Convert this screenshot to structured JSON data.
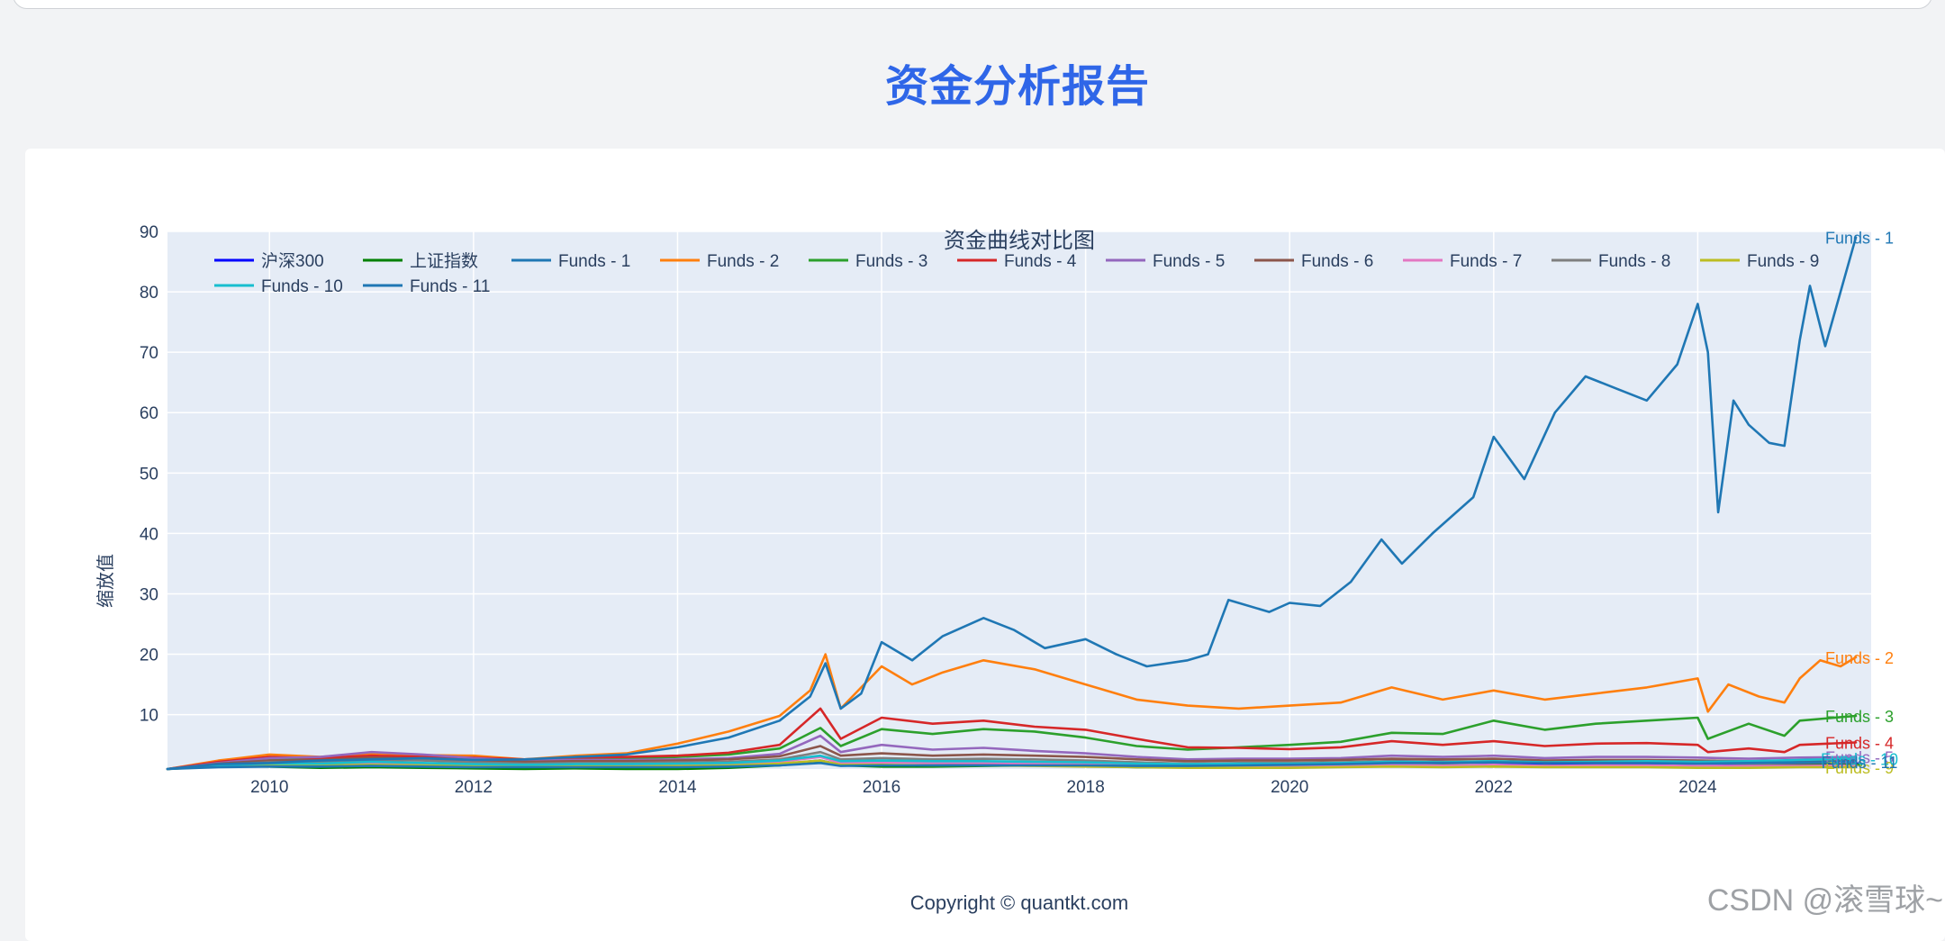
{
  "page": {
    "report_title": "资金分析报告",
    "footer": "Copyright © quantkt.com",
    "watermark": "CSDN @滚雪球~"
  },
  "chart_data": {
    "type": "line",
    "title": "资金曲线对比图",
    "xlabel": "",
    "ylabel": "缩放值",
    "xlim": [
      2009.0,
      2025.7
    ],
    "ylim": [
      1,
      90
    ],
    "x_ticks": [
      "2010",
      "2012",
      "2014",
      "2016",
      "2018",
      "2020",
      "2022",
      "2024"
    ],
    "y_ticks": [
      "10",
      "20",
      "30",
      "40",
      "50",
      "60",
      "70",
      "80",
      "90"
    ],
    "grid": true,
    "legend_position": "top",
    "series": [
      {
        "name": "沪深300",
        "color": "#0000ff",
        "end_label": false,
        "x": [
          2009.0,
          2009.5,
          2010.0,
          2010.5,
          2011.0,
          2011.5,
          2012.0,
          2012.5,
          2013.0,
          2013.5,
          2014.0,
          2014.5,
          2015.0,
          2015.4,
          2015.6,
          2016.0,
          2016.5,
          2017.0,
          2017.5,
          2018.0,
          2018.5,
          2019.0,
          2019.5,
          2020.0,
          2020.5,
          2021.0,
          2021.5,
          2022.0,
          2022.5,
          2023.0,
          2023.5,
          2024.0,
          2024.5,
          2025.0,
          2025.6
        ],
        "values": [
          1.0,
          1.6,
          1.5,
          1.3,
          1.4,
          1.3,
          1.2,
          1.1,
          1.2,
          1.1,
          1.1,
          1.3,
          1.8,
          2.4,
          1.7,
          1.5,
          1.6,
          1.7,
          1.9,
          1.8,
          1.5,
          1.4,
          1.7,
          1.8,
          2.0,
          2.3,
          2.2,
          2.0,
          1.9,
          1.8,
          1.7,
          1.5,
          1.6,
          1.8,
          1.9
        ]
      },
      {
        "name": "上证指数",
        "color": "#008000",
        "end_label": false,
        "x": [
          2009.0,
          2009.5,
          2010.0,
          2010.5,
          2011.0,
          2011.5,
          2012.0,
          2012.5,
          2013.0,
          2013.5,
          2014.0,
          2014.5,
          2015.0,
          2015.4,
          2015.6,
          2016.0,
          2016.5,
          2017.0,
          2017.5,
          2018.0,
          2018.5,
          2019.0,
          2019.5,
          2020.0,
          2020.5,
          2021.0,
          2021.5,
          2022.0,
          2022.5,
          2023.0,
          2023.5,
          2024.0,
          2024.5,
          2025.0,
          2025.6
        ],
        "values": [
          1.0,
          1.5,
          1.4,
          1.2,
          1.3,
          1.2,
          1.1,
          1.0,
          1.1,
          1.0,
          1.0,
          1.2,
          1.6,
          2.2,
          1.6,
          1.4,
          1.4,
          1.5,
          1.6,
          1.5,
          1.3,
          1.3,
          1.4,
          1.4,
          1.5,
          1.7,
          1.7,
          1.6,
          1.5,
          1.5,
          1.5,
          1.4,
          1.5,
          1.6,
          1.7
        ]
      },
      {
        "name": "Funds - 1",
        "color": "#1f77b4",
        "end_label": true,
        "x": [
          2009.0,
          2009.5,
          2010.0,
          2010.5,
          2011.0,
          2011.5,
          2012.0,
          2012.5,
          2013.0,
          2013.5,
          2014.0,
          2014.5,
          2015.0,
          2015.3,
          2015.45,
          2015.6,
          2015.8,
          2016.0,
          2016.3,
          2016.6,
          2017.0,
          2017.3,
          2017.6,
          2018.0,
          2018.3,
          2018.6,
          2019.0,
          2019.2,
          2019.4,
          2019.8,
          2020.0,
          2020.3,
          2020.6,
          2020.9,
          2021.1,
          2021.4,
          2021.8,
          2022.0,
          2022.3,
          2022.6,
          2022.9,
          2023.2,
          2023.5,
          2023.8,
          2024.0,
          2024.1,
          2024.2,
          2024.35,
          2024.5,
          2024.7,
          2024.85,
          2025.0,
          2025.1,
          2025.25,
          2025.4,
          2025.55
        ],
        "values": [
          1.0,
          1.8,
          2.0,
          2.4,
          2.6,
          2.8,
          2.5,
          2.6,
          3.0,
          3.4,
          4.6,
          6.2,
          9.0,
          13.0,
          18.5,
          11.0,
          13.5,
          22.0,
          19.0,
          23.0,
          26.0,
          24.0,
          21.0,
          22.5,
          20.0,
          18.0,
          19.0,
          20.0,
          29.0,
          27.0,
          28.5,
          28.0,
          32.0,
          39.0,
          35.0,
          40.0,
          46.0,
          56.0,
          49.0,
          60.0,
          66.0,
          64.0,
          62.0,
          68.0,
          78.0,
          70.0,
          43.5,
          62.0,
          58.0,
          55.0,
          54.5,
          72.0,
          81.0,
          71.0,
          80.0,
          89.0
        ]
      },
      {
        "name": "Funds - 2",
        "color": "#ff7f0e",
        "end_label": true,
        "x": [
          2009.0,
          2009.5,
          2010.0,
          2010.5,
          2011.0,
          2011.5,
          2012.0,
          2012.5,
          2013.0,
          2013.5,
          2014.0,
          2014.5,
          2015.0,
          2015.3,
          2015.45,
          2015.6,
          2015.8,
          2016.0,
          2016.3,
          2016.6,
          2017.0,
          2017.5,
          2018.0,
          2018.5,
          2019.0,
          2019.5,
          2020.0,
          2020.5,
          2021.0,
          2021.5,
          2022.0,
          2022.5,
          2023.0,
          2023.5,
          2024.0,
          2024.1,
          2024.3,
          2024.6,
          2024.85,
          2025.0,
          2025.2,
          2025.4,
          2025.55
        ],
        "values": [
          1.0,
          2.4,
          3.4,
          3.0,
          3.6,
          3.3,
          3.2,
          2.6,
          3.2,
          3.6,
          5.2,
          7.2,
          9.8,
          14.0,
          20.0,
          11.0,
          14.5,
          18.0,
          15.0,
          17.0,
          19.0,
          17.5,
          15.0,
          12.5,
          11.5,
          11.0,
          11.5,
          12.0,
          14.5,
          12.5,
          14.0,
          12.5,
          13.5,
          14.5,
          16.0,
          10.5,
          15.0,
          13.0,
          12.0,
          16.0,
          19.0,
          18.0,
          19.5
        ]
      },
      {
        "name": "Funds - 3",
        "color": "#2ca02c",
        "end_label": true,
        "x": [
          2009.0,
          2009.5,
          2010.0,
          2010.5,
          2011.0,
          2011.5,
          2012.0,
          2012.5,
          2013.0,
          2013.5,
          2014.0,
          2014.5,
          2015.0,
          2015.4,
          2015.6,
          2016.0,
          2016.5,
          2017.0,
          2017.5,
          2018.0,
          2018.5,
          2019.0,
          2019.5,
          2020.0,
          2020.5,
          2021.0,
          2021.5,
          2022.0,
          2022.5,
          2023.0,
          2023.5,
          2024.0,
          2024.1,
          2024.5,
          2024.85,
          2025.0,
          2025.55
        ],
        "values": [
          1.0,
          2.0,
          2.6,
          2.6,
          3.0,
          2.8,
          2.6,
          2.3,
          2.6,
          2.7,
          3.0,
          3.4,
          4.4,
          7.8,
          4.8,
          7.6,
          6.8,
          7.6,
          7.2,
          6.2,
          4.8,
          4.2,
          4.6,
          5.0,
          5.5,
          7.0,
          6.8,
          9.0,
          7.5,
          8.5,
          9.0,
          9.5,
          6.0,
          8.5,
          6.5,
          9.0,
          9.8
        ]
      },
      {
        "name": "Funds - 4",
        "color": "#d62728",
        "end_label": true,
        "x": [
          2009.0,
          2009.5,
          2010.0,
          2010.5,
          2011.0,
          2011.5,
          2012.0,
          2012.5,
          2013.0,
          2013.5,
          2014.0,
          2014.5,
          2015.0,
          2015.4,
          2015.6,
          2016.0,
          2016.5,
          2017.0,
          2017.5,
          2018.0,
          2018.5,
          2019.0,
          2019.5,
          2020.0,
          2020.5,
          2021.0,
          2021.5,
          2022.0,
          2022.5,
          2023.0,
          2023.5,
          2024.0,
          2024.1,
          2024.5,
          2024.85,
          2025.0,
          2025.55
        ],
        "values": [
          1.0,
          2.2,
          3.0,
          2.8,
          3.2,
          3.0,
          2.9,
          2.6,
          2.9,
          3.0,
          3.2,
          3.7,
          5.0,
          11.0,
          6.0,
          9.5,
          8.5,
          9.0,
          8.0,
          7.5,
          6.0,
          4.6,
          4.5,
          4.3,
          4.6,
          5.6,
          5.0,
          5.6,
          4.8,
          5.2,
          5.3,
          5.0,
          3.8,
          4.4,
          3.8,
          5.0,
          5.4
        ]
      },
      {
        "name": "Funds - 5",
        "color": "#9467bd",
        "end_label": true,
        "x": [
          2009.0,
          2009.5,
          2010.0,
          2010.5,
          2011.0,
          2011.5,
          2012.0,
          2012.5,
          2013.0,
          2013.5,
          2014.0,
          2014.5,
          2015.0,
          2015.4,
          2015.6,
          2016.0,
          2016.5,
          2017.0,
          2017.5,
          2018.0,
          2018.5,
          2019.0,
          2019.5,
          2020.0,
          2020.5,
          2021.0,
          2021.5,
          2022.0,
          2022.5,
          2023.0,
          2023.5,
          2024.0,
          2024.5,
          2025.0,
          2025.55
        ],
        "values": [
          1.0,
          2.0,
          2.8,
          3.0,
          3.8,
          3.4,
          2.8,
          2.4,
          2.5,
          2.5,
          2.6,
          2.8,
          3.5,
          6.5,
          3.8,
          5.0,
          4.2,
          4.5,
          4.0,
          3.6,
          3.0,
          2.6,
          2.7,
          2.7,
          2.8,
          3.2,
          3.0,
          3.2,
          2.8,
          3.0,
          3.0,
          2.9,
          2.7,
          2.9,
          3.0
        ]
      },
      {
        "name": "Funds - 6",
        "color": "#8c564b",
        "end_label": false,
        "x": [
          2009.0,
          2009.5,
          2010.0,
          2010.5,
          2011.0,
          2011.5,
          2012.0,
          2012.5,
          2013.0,
          2013.5,
          2014.0,
          2014.5,
          2015.0,
          2015.4,
          2015.6,
          2016.0,
          2016.5,
          2017.0,
          2017.5,
          2018.0,
          2018.5,
          2019.0,
          2019.5,
          2020.0,
          2020.5,
          2021.0,
          2021.5,
          2022.0,
          2022.5,
          2023.0,
          2023.5,
          2024.0,
          2024.5,
          2025.0,
          2025.55
        ],
        "values": [
          1.0,
          1.9,
          2.4,
          2.5,
          2.9,
          2.7,
          2.4,
          2.2,
          2.3,
          2.3,
          2.4,
          2.6,
          3.1,
          4.8,
          3.2,
          3.6,
          3.2,
          3.4,
          3.2,
          3.0,
          2.6,
          2.3,
          2.4,
          2.4,
          2.5,
          2.7,
          2.6,
          2.7,
          2.4,
          2.5,
          2.5,
          2.4,
          2.3,
          2.4,
          2.5
        ]
      },
      {
        "name": "Funds - 7",
        "color": "#e377c2",
        "end_label": false,
        "x": [
          2009.0,
          2009.5,
          2010.0,
          2010.5,
          2011.0,
          2011.5,
          2012.0,
          2012.5,
          2013.0,
          2013.5,
          2014.0,
          2014.5,
          2015.0,
          2015.4,
          2015.6,
          2016.0,
          2016.5,
          2017.0,
          2017.5,
          2018.0,
          2018.5,
          2019.0,
          2019.5,
          2020.0,
          2020.5,
          2021.0,
          2021.5,
          2022.0,
          2022.5,
          2023.0,
          2023.5,
          2024.0,
          2024.5,
          2025.0,
          2025.55
        ],
        "values": [
          1.0,
          1.5,
          1.8,
          1.8,
          2.0,
          1.9,
          1.7,
          1.6,
          1.7,
          1.6,
          1.7,
          1.8,
          2.2,
          3.0,
          2.0,
          2.1,
          2.0,
          2.0,
          1.9,
          1.8,
          1.6,
          1.5,
          1.5,
          1.5,
          1.6,
          1.7,
          1.6,
          1.7,
          1.5,
          1.6,
          1.6,
          1.5,
          1.5,
          1.5,
          1.6
        ]
      },
      {
        "name": "Funds - 8",
        "color": "#7f7f7f",
        "end_label": false,
        "x": [
          2009.0,
          2009.5,
          2010.0,
          2010.5,
          2011.0,
          2011.5,
          2012.0,
          2012.5,
          2013.0,
          2013.5,
          2014.0,
          2014.5,
          2015.0,
          2015.4,
          2015.6,
          2016.0,
          2016.5,
          2017.0,
          2017.5,
          2018.0,
          2018.5,
          2019.0,
          2019.5,
          2020.0,
          2020.5,
          2021.0,
          2021.5,
          2022.0,
          2022.5,
          2023.0,
          2023.5,
          2024.0,
          2024.5,
          2025.0,
          2025.55
        ],
        "values": [
          1.0,
          1.7,
          2.1,
          2.2,
          2.5,
          2.4,
          2.1,
          1.9,
          2.0,
          2.0,
          2.1,
          2.2,
          2.6,
          3.8,
          2.6,
          2.8,
          2.6,
          2.7,
          2.6,
          2.4,
          2.1,
          1.9,
          2.0,
          2.0,
          2.1,
          2.3,
          2.2,
          2.3,
          2.0,
          2.1,
          2.1,
          2.0,
          1.9,
          2.0,
          2.1
        ]
      },
      {
        "name": "Funds - 9",
        "color": "#bcbd22",
        "end_label": true,
        "x": [
          2009.0,
          2009.5,
          2010.0,
          2010.5,
          2011.0,
          2011.5,
          2012.0,
          2012.5,
          2013.0,
          2013.5,
          2014.0,
          2014.5,
          2015.0,
          2015.4,
          2015.6,
          2016.0,
          2016.5,
          2017.0,
          2017.5,
          2018.0,
          2018.5,
          2019.0,
          2019.5,
          2020.0,
          2020.5,
          2021.0,
          2021.5,
          2022.0,
          2022.5,
          2023.0,
          2023.5,
          2024.0,
          2024.5,
          2025.0,
          2025.55
        ],
        "values": [
          1.0,
          1.4,
          1.6,
          1.6,
          1.7,
          1.6,
          1.5,
          1.4,
          1.5,
          1.4,
          1.5,
          1.6,
          1.9,
          2.4,
          1.7,
          1.7,
          1.6,
          1.6,
          1.5,
          1.4,
          1.3,
          1.2,
          1.2,
          1.2,
          1.3,
          1.4,
          1.3,
          1.4,
          1.3,
          1.3,
          1.3,
          1.2,
          1.2,
          1.3,
          1.3
        ]
      },
      {
        "name": "Funds - 10",
        "color": "#17becf",
        "end_label": true,
        "x": [
          2009.0,
          2009.5,
          2010.0,
          2010.5,
          2011.0,
          2011.5,
          2012.0,
          2012.5,
          2013.0,
          2013.5,
          2014.0,
          2014.5,
          2015.0,
          2015.4,
          2015.6,
          2016.0,
          2016.5,
          2017.0,
          2017.5,
          2018.0,
          2018.5,
          2019.0,
          2019.5,
          2020.0,
          2020.5,
          2021.0,
          2021.5,
          2022.0,
          2022.5,
          2023.0,
          2023.5,
          2024.0,
          2024.5,
          2025.0,
          2025.55
        ],
        "values": [
          1.0,
          1.6,
          1.9,
          1.9,
          2.2,
          2.0,
          1.8,
          1.7,
          1.8,
          1.8,
          1.9,
          2.0,
          2.4,
          3.2,
          2.3,
          2.4,
          2.3,
          2.3,
          2.2,
          2.1,
          1.9,
          1.8,
          1.9,
          1.9,
          2.0,
          2.2,
          2.1,
          2.3,
          2.1,
          2.2,
          2.3,
          2.2,
          2.3,
          2.5,
          2.7
        ]
      },
      {
        "name": "Funds - 11",
        "color": "#1f77b4",
        "end_label": true,
        "x": [
          2009.0,
          2009.5,
          2010.0,
          2010.5,
          2011.0,
          2011.5,
          2012.0,
          2012.5,
          2013.0,
          2013.5,
          2014.0,
          2014.5,
          2015.0,
          2015.4,
          2015.6,
          2016.0,
          2016.5,
          2017.0,
          2017.5,
          2018.0,
          2018.5,
          2019.0,
          2019.5,
          2020.0,
          2020.5,
          2021.0,
          2021.5,
          2022.0,
          2022.5,
          2023.0,
          2023.5,
          2024.0,
          2024.5,
          2025.0,
          2025.55
        ],
        "values": [
          1.0,
          1.3,
          1.4,
          1.4,
          1.5,
          1.4,
          1.3,
          1.3,
          1.3,
          1.3,
          1.3,
          1.4,
          1.6,
          2.0,
          1.5,
          1.6,
          1.6,
          1.6,
          1.6,
          1.6,
          1.5,
          1.5,
          1.6,
          1.7,
          1.8,
          2.0,
          2.0,
          2.1,
          2.0,
          2.0,
          2.0,
          1.9,
          2.0,
          2.1,
          2.2
        ]
      }
    ]
  }
}
